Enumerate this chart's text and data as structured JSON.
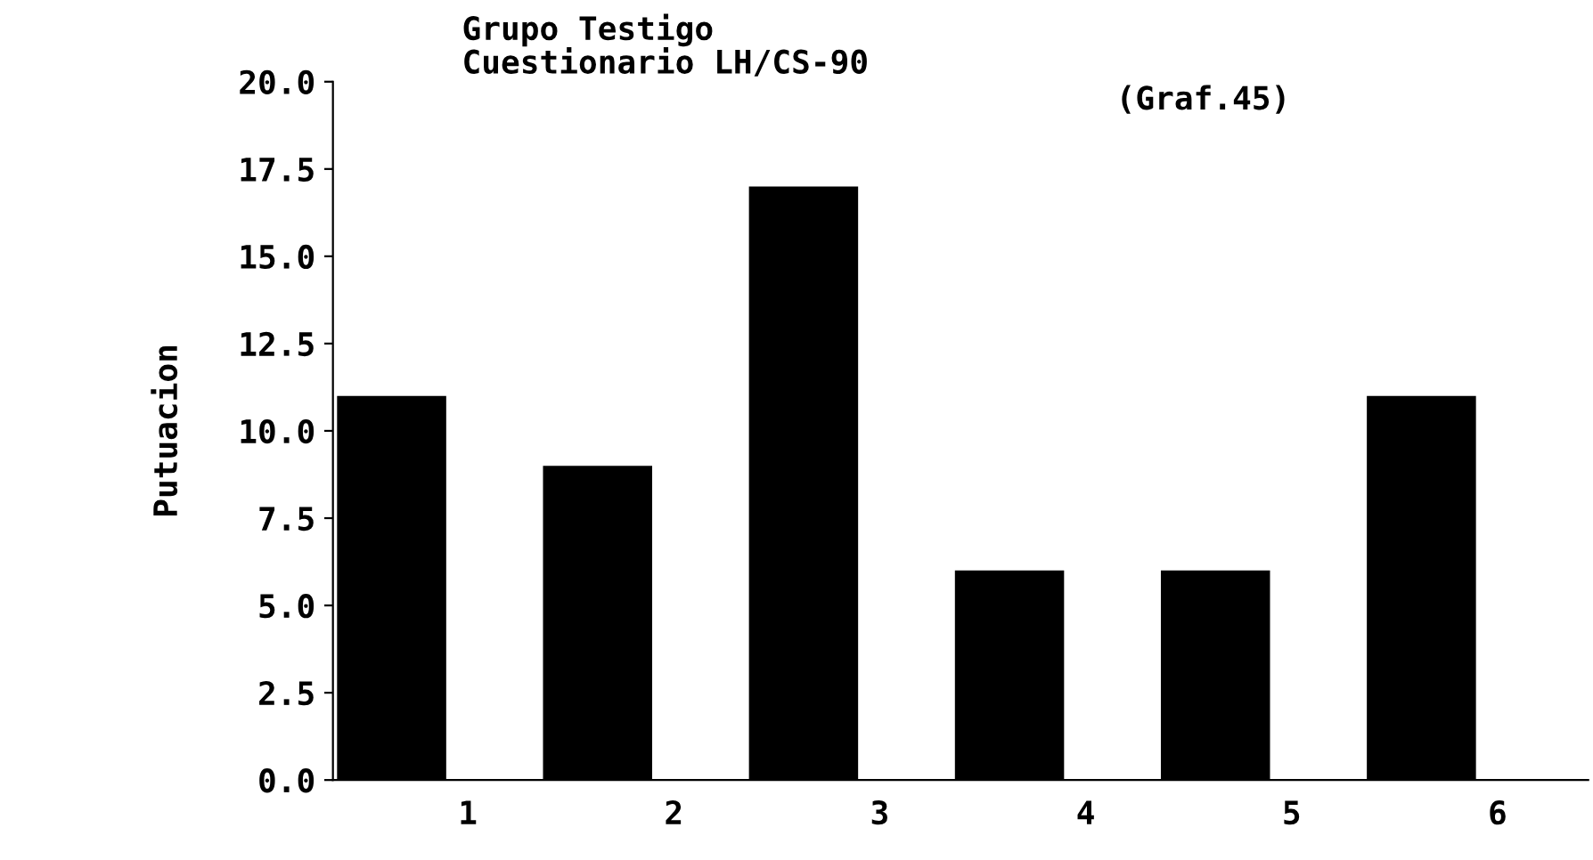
{
  "chart_data": {
    "type": "bar",
    "title": "Grupo Testigo",
    "subtitle": "Cuestionario LH/CS-90",
    "annotations": [
      "(Graf.45)"
    ],
    "ylabel": "Putuacion",
    "categories": [
      "1",
      "2",
      "3",
      "4",
      "5",
      "6"
    ],
    "values": [
      11,
      9,
      17,
      6,
      6,
      11
    ],
    "color": "#000000",
    "ylim": [
      0,
      20
    ],
    "yticks": [
      {
        "value": 0,
        "label": "0.0"
      },
      {
        "value": 2.5,
        "label": "2.5"
      },
      {
        "value": 5,
        "label": "5.0"
      },
      {
        "value": 7.5,
        "label": "7.5"
      },
      {
        "value": 10,
        "label": "10.0"
      },
      {
        "value": 12.5,
        "label": "12.5"
      },
      {
        "value": 15,
        "label": "15.0"
      },
      {
        "value": 17.5,
        "label": "17.5"
      },
      {
        "value": 20,
        "label": "20.0"
      }
    ],
    "grid": false
  }
}
